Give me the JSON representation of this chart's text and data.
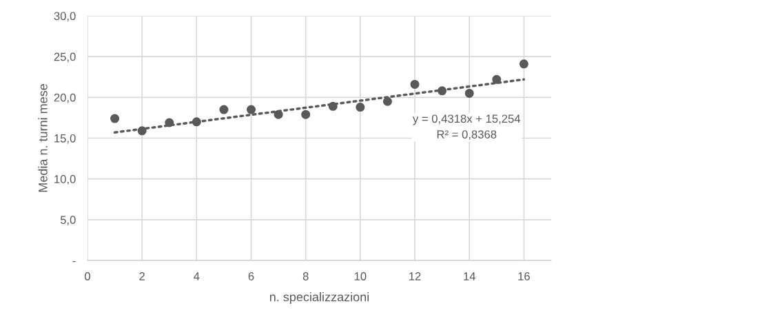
{
  "chart_data": {
    "type": "scatter",
    "xlabel": "n. specializzazioni",
    "ylabel": "Media n. turni mese",
    "x": [
      1,
      2,
      3,
      4,
      5,
      6,
      7,
      8,
      9,
      10,
      11,
      12,
      13,
      14,
      15,
      16
    ],
    "series": [
      {
        "color": "#595959",
        "marker": "circle",
        "values": [
          17.4,
          15.9,
          16.9,
          17.0,
          18.5,
          18.5,
          17.9,
          17.9,
          18.9,
          18.8,
          19.5,
          21.6,
          20.8,
          20.5,
          22.2,
          24.1
        ]
      },
      {
        "type": "line",
        "color": "#595959",
        "line_style": "dotted",
        "x": [
          1,
          16
        ],
        "values": [
          15.7,
          22.2
        ]
      }
    ],
    "annotations": [
      "y = 0,4318x + 15,254\nR² = 0,8368"
    ],
    "xlim": [
      0,
      17
    ],
    "xticks": [
      0,
      2,
      4,
      6,
      8,
      10,
      12,
      14,
      16
    ],
    "ylim": [
      0,
      30
    ],
    "yticks": [
      {
        "value": 0,
        "label": "-"
      },
      {
        "value": 5,
        "label": "5,0"
      },
      {
        "value": 10,
        "label": "10,0"
      },
      {
        "value": 15,
        "label": "15,0"
      },
      {
        "value": 20,
        "label": "20,0"
      },
      {
        "value": 25,
        "label": "25,0"
      },
      {
        "value": 30,
        "label": "30,0"
      }
    ],
    "grid": true,
    "legend": false
  }
}
